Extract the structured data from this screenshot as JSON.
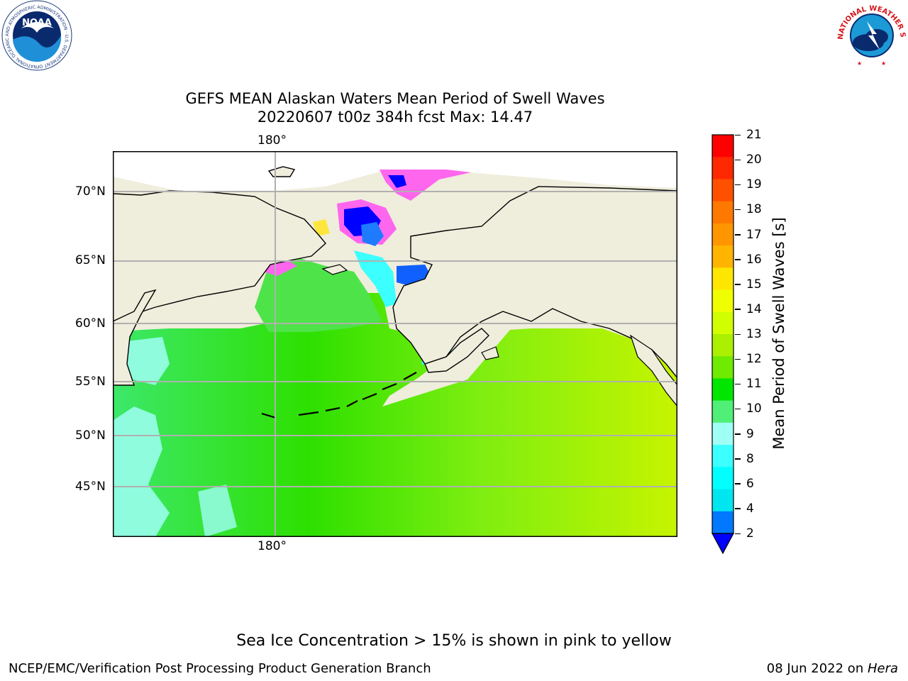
{
  "title": {
    "line1": "GEFS MEAN Alaskan Waters Mean Period of Swell Waves",
    "line2": "20220607 t00z 384h fcst   Max: 14.47"
  },
  "logos": {
    "noaa_text": "NOAA",
    "noaa_ring": "NATIONAL OCEANIC AND ATMOSPHERIC ADMINISTRATION · U.S. DEPARTMENT OF COMMERCE",
    "nws_ring": "NATIONAL WEATHER SERVICE"
  },
  "map": {
    "lon_label_top": "180°",
    "lon_label_bottom": "180°",
    "lat_labels": [
      "70°N",
      "65°N",
      "60°N",
      "55°N",
      "50°N",
      "45°N"
    ],
    "land_color": "#efeddc",
    "grid_color": "#b0b0b0"
  },
  "colorbar": {
    "label": "Mean Period of Swell Waves [s]",
    "ticks": [
      "21",
      "20",
      "19",
      "18",
      "17",
      "16",
      "15",
      "14",
      "13",
      "12",
      "11",
      "10",
      "9",
      "8",
      "6",
      "4",
      "2"
    ],
    "colors_top_to_bottom": [
      "#ff0000",
      "#ff2800",
      "#ff5000",
      "#ff7800",
      "#ff9600",
      "#ffb400",
      "#ffe600",
      "#f0ff00",
      "#d2ff00",
      "#aaf000",
      "#6eeb00",
      "#00e600",
      "#50f078",
      "#9ffff5",
      "#3cffff",
      "#00ffff",
      "#00e6f0",
      "#0078ff"
    ],
    "extend_color": "#0000ff"
  },
  "sea_ice_note": "Sea Ice Concentration > 15% is shown in pink to yellow",
  "footer": {
    "left": "NCEP/EMC/Verification Post Processing Product Generation Branch",
    "date": "08 Jun 2022 on ",
    "machine": "Hera"
  }
}
